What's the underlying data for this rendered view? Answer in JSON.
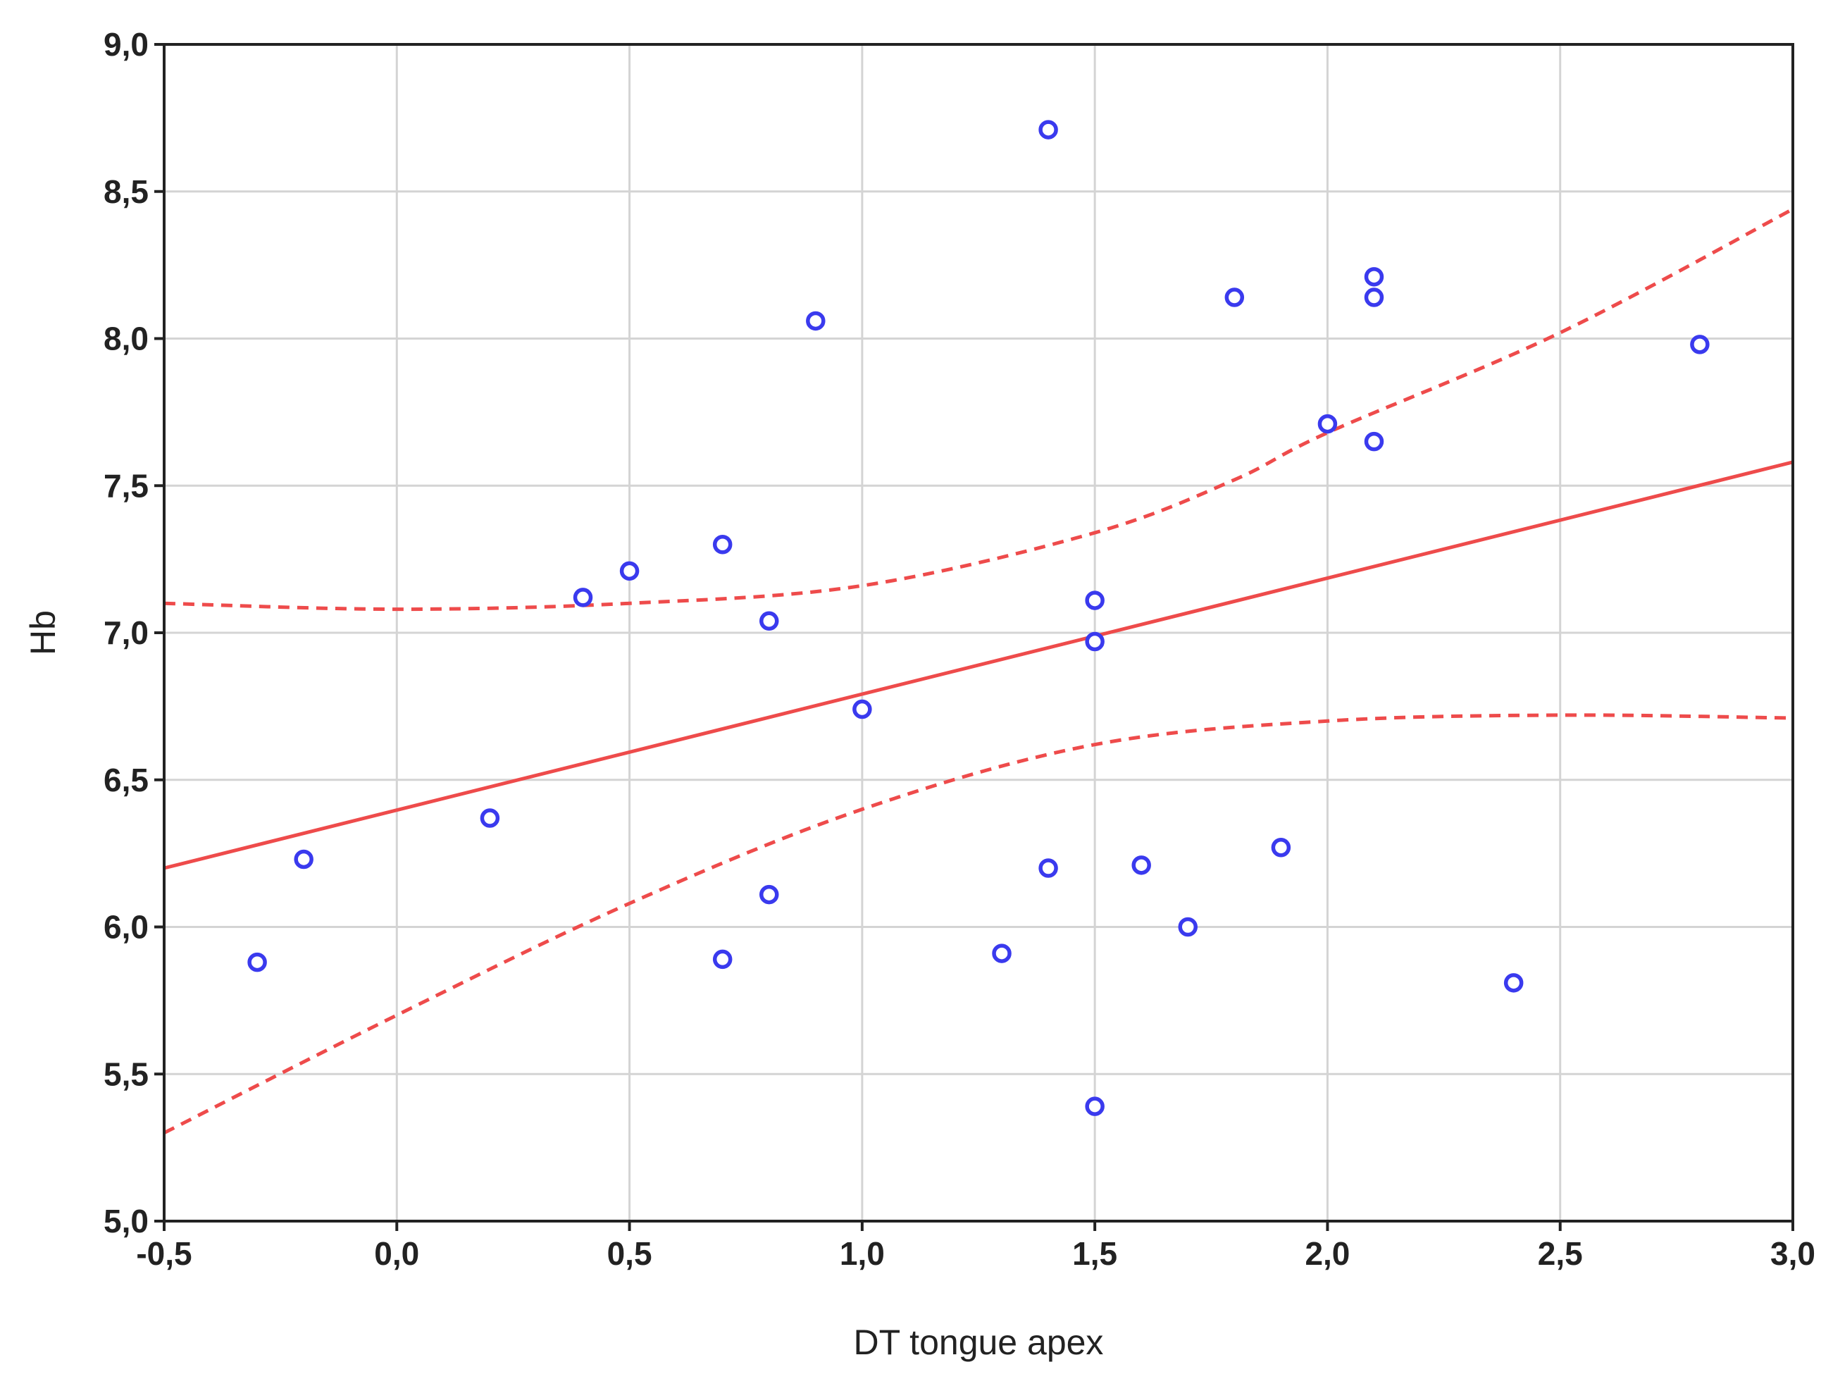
{
  "chart_data": {
    "type": "scatter",
    "xlabel": "DT  tongue apex",
    "ylabel": "Hb",
    "xlim": [
      -0.5,
      3.0
    ],
    "ylim": [
      5.0,
      9.0
    ],
    "x_ticks": [
      -0.5,
      0.0,
      0.5,
      1.0,
      1.5,
      2.0,
      2.5,
      3.0
    ],
    "y_ticks": [
      5.0,
      5.5,
      6.0,
      6.5,
      7.0,
      7.5,
      8.0,
      8.5,
      9.0
    ],
    "x_tick_labels": [
      "-0,5",
      "0,0",
      "0,5",
      "1,0",
      "1,5",
      "2,0",
      "2,5",
      "3,0"
    ],
    "y_tick_labels": [
      "5,0",
      "5,5",
      "6,0",
      "6,5",
      "7,0",
      "7,5",
      "8,0",
      "8,5",
      "9,0"
    ],
    "grid": true,
    "points": [
      {
        "x": -0.3,
        "y": 5.88
      },
      {
        "x": -0.2,
        "y": 6.23
      },
      {
        "x": 0.2,
        "y": 6.37
      },
      {
        "x": 0.4,
        "y": 7.12
      },
      {
        "x": 0.5,
        "y": 7.21
      },
      {
        "x": 0.7,
        "y": 7.3
      },
      {
        "x": 0.7,
        "y": 5.89
      },
      {
        "x": 0.8,
        "y": 7.04
      },
      {
        "x": 0.8,
        "y": 6.11
      },
      {
        "x": 0.9,
        "y": 8.06
      },
      {
        "x": 1.0,
        "y": 6.74
      },
      {
        "x": 1.3,
        "y": 5.91
      },
      {
        "x": 1.4,
        "y": 8.71
      },
      {
        "x": 1.4,
        "y": 6.2
      },
      {
        "x": 1.5,
        "y": 7.11
      },
      {
        "x": 1.5,
        "y": 6.97
      },
      {
        "x": 1.5,
        "y": 5.39
      },
      {
        "x": 1.6,
        "y": 6.21
      },
      {
        "x": 1.7,
        "y": 6.0
      },
      {
        "x": 1.8,
        "y": 8.14
      },
      {
        "x": 1.9,
        "y": 6.27
      },
      {
        "x": 2.0,
        "y": 7.71
      },
      {
        "x": 2.1,
        "y": 8.21
      },
      {
        "x": 2.1,
        "y": 8.14
      },
      {
        "x": 2.1,
        "y": 7.65
      },
      {
        "x": 2.4,
        "y": 5.81
      },
      {
        "x": 2.8,
        "y": 7.98
      }
    ],
    "regression_line": {
      "x": [
        -0.5,
        3.0
      ],
      "y": [
        6.2,
        7.58
      ]
    },
    "confidence_upper": {
      "x": [
        -0.5,
        0.0,
        0.5,
        1.0,
        1.5,
        1.8,
        2.0,
        2.5,
        3.0
      ],
      "y": [
        7.1,
        7.08,
        7.1,
        7.16,
        7.34,
        7.52,
        7.68,
        8.02,
        8.44
      ]
    },
    "confidence_lower": {
      "x": [
        -0.5,
        0.0,
        0.5,
        1.0,
        1.5,
        2.0,
        2.5,
        3.0
      ],
      "y": [
        5.3,
        5.7,
        6.08,
        6.4,
        6.62,
        6.7,
        6.72,
        6.71
      ]
    },
    "colors": {
      "points": "#3a3aee",
      "fit": "#ee4b4b",
      "grid": "#d4d4d4",
      "frame": "#222222",
      "text": "#222222"
    }
  }
}
